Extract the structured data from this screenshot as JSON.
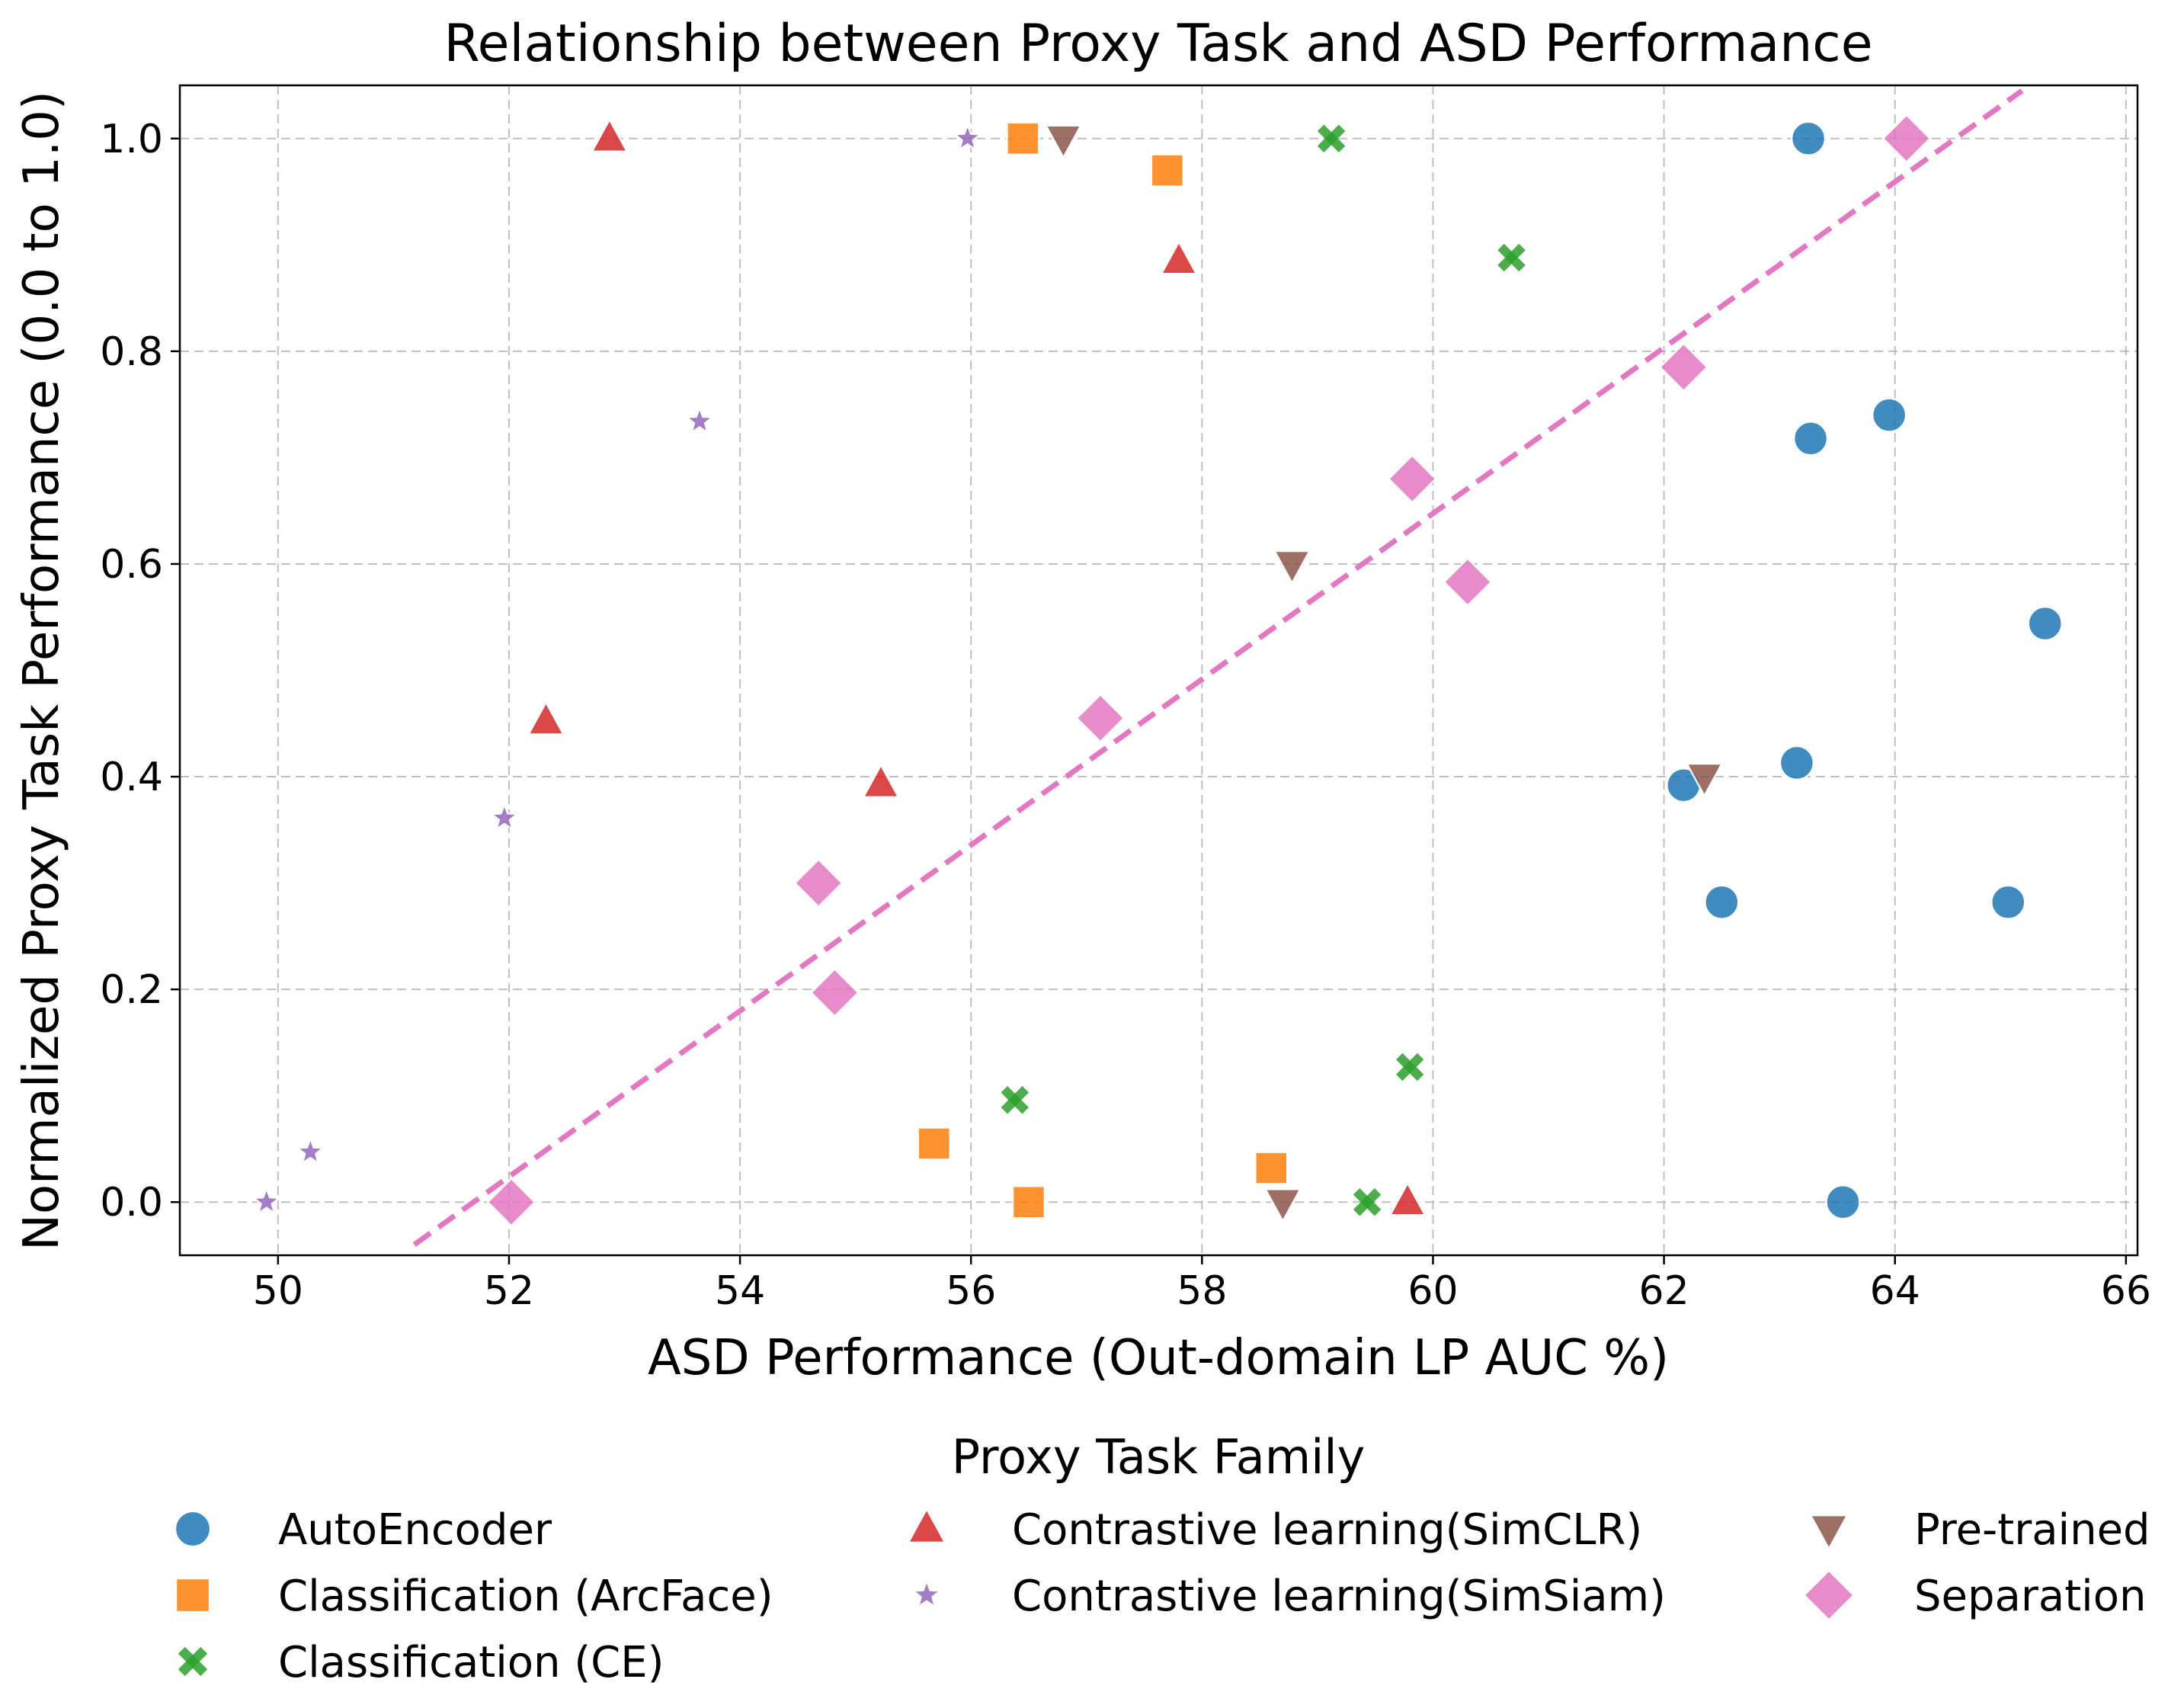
{
  "chart_data": {
    "type": "scatter",
    "title": "Relationship between Proxy Task and ASD Performance",
    "xlabel": "ASD Performance (Out-domain LP AUC %)",
    "ylabel": "Normalized Proxy Task Performance (0.0 to 1.0)",
    "xlim": [
      49.15,
      66.1
    ],
    "ylim": [
      -0.05,
      1.05
    ],
    "xticks": [
      50,
      52,
      54,
      56,
      58,
      60,
      62,
      64,
      66
    ],
    "yticks": [
      0.0,
      0.2,
      0.4,
      0.6,
      0.8,
      1.0
    ],
    "xtick_labels": [
      "50",
      "52",
      "54",
      "56",
      "58",
      "60",
      "62",
      "64",
      "66"
    ],
    "ytick_labels": [
      "0.0",
      "0.2",
      "0.4",
      "0.6",
      "0.8",
      "1.0"
    ],
    "grid": true,
    "legend": {
      "title": "Proxy Task Family",
      "placement": "below-center",
      "columns": 3
    },
    "series": [
      {
        "name": "AutoEncoder",
        "marker": "circle",
        "color": "#1f77b4",
        "points": [
          [
            63.25,
            1.0
          ],
          [
            63.95,
            0.74
          ],
          [
            63.27,
            0.718
          ],
          [
            65.3,
            0.544
          ],
          [
            63.15,
            0.413
          ],
          [
            62.17,
            0.392
          ],
          [
            62.5,
            0.282
          ],
          [
            64.98,
            0.282
          ],
          [
            63.55,
            0.0
          ]
        ]
      },
      {
        "name": "Classification (ArcFace)",
        "marker": "square",
        "color": "#ff7f0e",
        "points": [
          [
            56.45,
            1.0
          ],
          [
            57.7,
            0.97
          ],
          [
            55.68,
            0.055
          ],
          [
            58.6,
            0.032
          ],
          [
            56.5,
            0.0
          ]
        ]
      },
      {
        "name": "Classification (CE)",
        "marker": "x",
        "color": "#2ca02c",
        "points": [
          [
            59.12,
            1.0
          ],
          [
            60.68,
            0.888
          ],
          [
            59.8,
            0.127
          ],
          [
            56.38,
            0.096
          ],
          [
            59.43,
            0.0
          ]
        ]
      },
      {
        "name": "Contrastive learning(SimCLR)",
        "marker": "triangle-up",
        "color": "#d62728",
        "points": [
          [
            52.87,
            1.0
          ],
          [
            57.8,
            0.885
          ],
          [
            52.32,
            0.452
          ],
          [
            55.22,
            0.393
          ],
          [
            59.78,
            0.0
          ]
        ]
      },
      {
        "name": "Contrastive learning(SimSiam)",
        "marker": "star",
        "color": "#9467bd",
        "points": [
          [
            55.97,
            1.0
          ],
          [
            53.65,
            0.734
          ],
          [
            51.96,
            0.361
          ],
          [
            50.28,
            0.047
          ],
          [
            49.9,
            0.0
          ]
        ]
      },
      {
        "name": "Pre-trained",
        "marker": "triangle-down",
        "color": "#8c564b",
        "points": [
          [
            56.8,
            1.0
          ],
          [
            58.78,
            0.6
          ],
          [
            62.35,
            0.4
          ],
          [
            58.7,
            0.0
          ]
        ]
      },
      {
        "name": "Separation",
        "marker": "diamond",
        "color": "#e377c2",
        "points": [
          [
            64.1,
            1.0
          ],
          [
            62.17,
            0.785
          ],
          [
            59.82,
            0.68
          ],
          [
            60.3,
            0.583
          ],
          [
            57.12,
            0.455
          ],
          [
            54.68,
            0.3
          ],
          [
            54.82,
            0.197
          ],
          [
            52.02,
            0.0
          ]
        ]
      }
    ],
    "trendline": {
      "series": "Separation",
      "style": "dashed",
      "color": "#e377c2",
      "x": [
        51.18,
        65.1
      ],
      "y": [
        -0.04,
        1.045
      ]
    }
  }
}
